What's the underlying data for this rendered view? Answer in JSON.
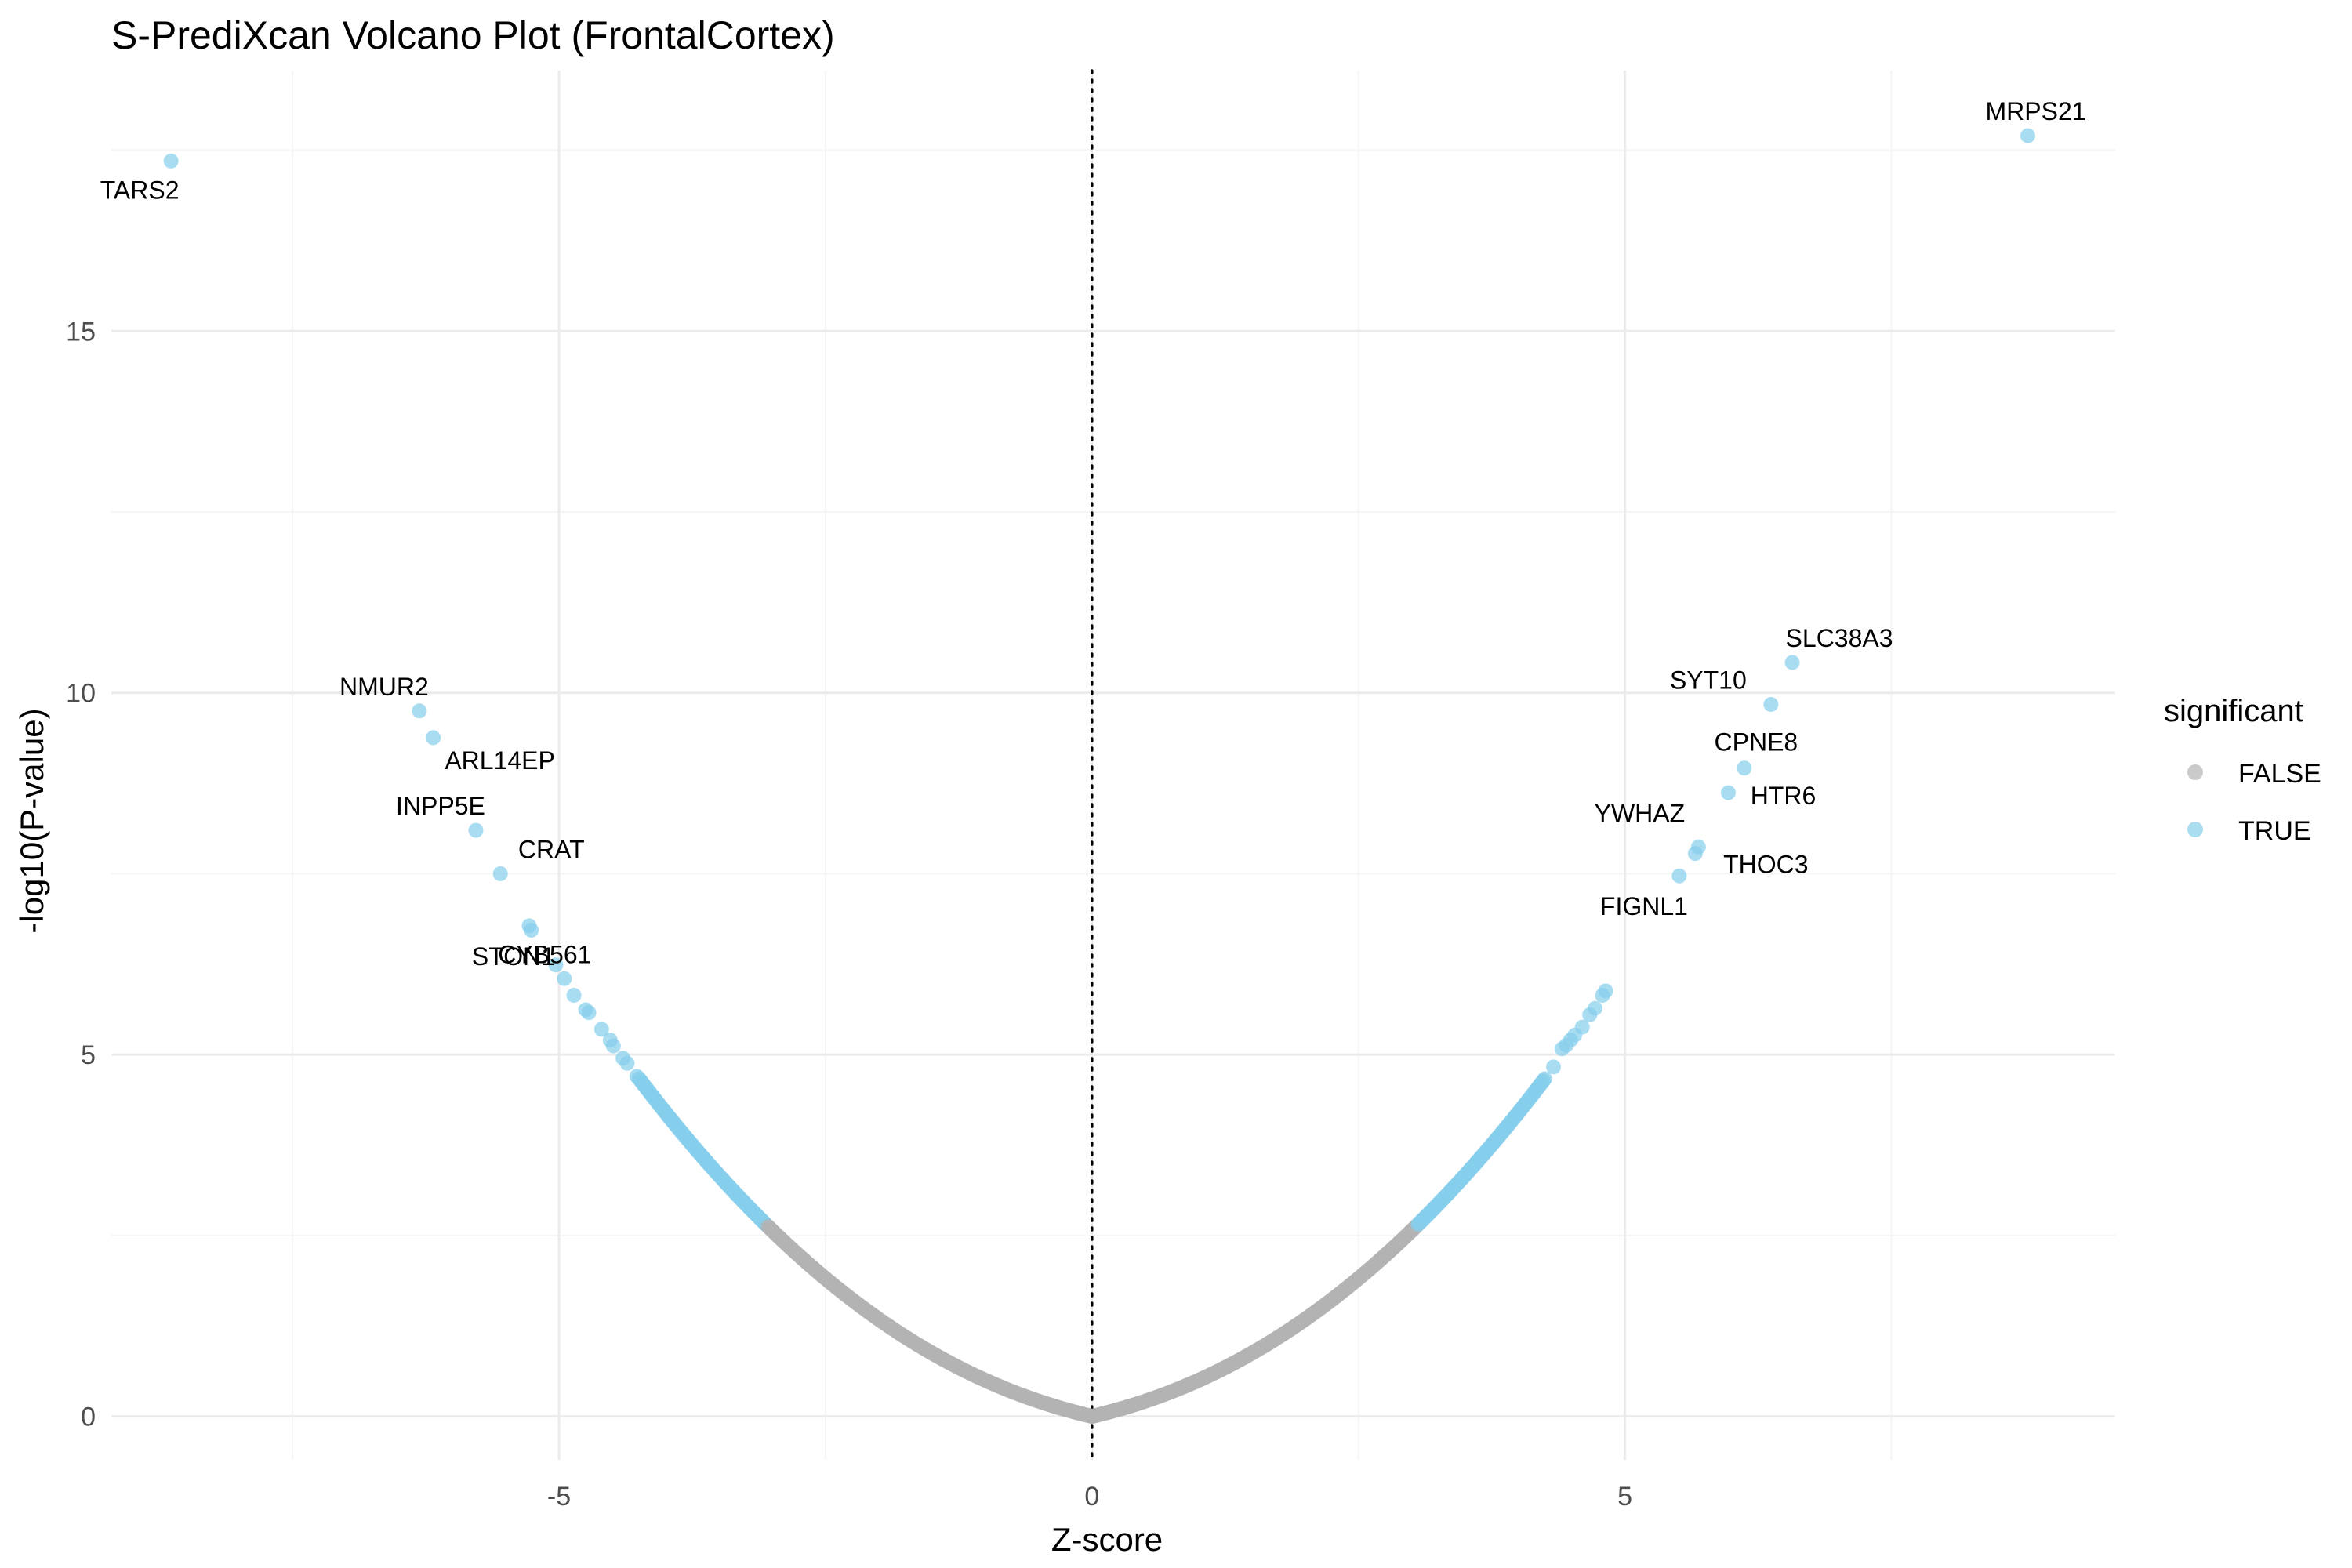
{
  "colors": {
    "FALSE": "#b3b3b3",
    "TRUE": "#87ceeb",
    "grid_major": "#ebebeb",
    "grid_minor": "#f5f5f5",
    "zero_line": "#000000"
  },
  "chart_data": {
    "type": "scatter",
    "title": "S-PrediXcan Volcano Plot (FrontalCortex)",
    "xlabel": "Z-score",
    "ylabel": "-log10(P-value)",
    "xlim": [
      -9.2,
      9.6
    ],
    "ylim": [
      -0.6,
      18.6
    ],
    "x_ticks": [
      -5,
      0,
      5
    ],
    "x_tick_labels": [
      "-5",
      "0",
      "5"
    ],
    "y_ticks": [
      0,
      5,
      10,
      15
    ],
    "y_tick_labels": [
      "0",
      "5",
      "10",
      "15"
    ],
    "grid": true,
    "reference_line": {
      "x": 0,
      "style": "dotted"
    },
    "significance_threshold_abs_z": 3.05,
    "legend": {
      "title": "significant",
      "position": "right",
      "entries": [
        {
          "label": "FALSE",
          "color": "#b3b3b3"
        },
        {
          "label": "TRUE",
          "color": "#87ceeb"
        }
      ]
    },
    "curve_series": {
      "description_note": "",
      "left_z_range": [
        -4.25,
        0
      ],
      "right_z_range": [
        0,
        4.25
      ]
    },
    "highlighted_points": [
      {
        "gene": "TARS2",
        "z": -8.64,
        "neglog10p": 17.35
      },
      {
        "gene": "MRPS21",
        "z": 8.78,
        "neglog10p": 17.7
      },
      {
        "gene": "NMUR2",
        "z": -6.31,
        "neglog10p": 9.75
      },
      {
        "gene": "ARL14EP",
        "z": -6.18,
        "neglog10p": 9.38
      },
      {
        "gene": "INPP5E",
        "z": -5.78,
        "neglog10p": 8.1
      },
      {
        "gene": "CRAT",
        "z": -5.55,
        "neglog10p": 7.5
      },
      {
        "gene": "STON1",
        "z": -5.28,
        "neglog10p": 6.78
      },
      {
        "gene": "CYB561",
        "z": -4.95,
        "neglog10p": 6.05
      },
      {
        "gene": "SLC38A3",
        "z": 6.57,
        "neglog10p": 10.42
      },
      {
        "gene": "SYT10",
        "z": 6.37,
        "neglog10p": 9.84
      },
      {
        "gene": "CPNE8",
        "z": 6.12,
        "neglog10p": 8.96
      },
      {
        "gene": "HTR6",
        "z": 5.97,
        "neglog10p": 8.62
      },
      {
        "gene": "YWHAZ",
        "z": 5.69,
        "neglog10p": 7.87
      },
      {
        "gene": "THOC3",
        "z": 5.66,
        "neglog10p": 7.78
      },
      {
        "gene": "FIGNL1",
        "z": 5.51,
        "neglog10p": 7.47
      }
    ],
    "other_significant_points": [
      {
        "z": -5.26,
        "neglog10p": 6.72
      },
      {
        "z": -5.03,
        "neglog10p": 6.24
      },
      {
        "z": -4.86,
        "neglog10p": 5.82
      },
      {
        "z": -4.75,
        "neglog10p": 5.62
      },
      {
        "z": -4.72,
        "neglog10p": 5.58
      },
      {
        "z": -4.6,
        "neglog10p": 5.35
      },
      {
        "z": -4.52,
        "neglog10p": 5.2
      },
      {
        "z": -4.49,
        "neglog10p": 5.12
      },
      {
        "z": -4.4,
        "neglog10p": 4.95
      },
      {
        "z": -4.36,
        "neglog10p": 4.88
      },
      {
        "z": -4.27,
        "neglog10p": 4.7
      },
      {
        "z": 4.33,
        "neglog10p": 4.83
      },
      {
        "z": 4.41,
        "neglog10p": 5.08
      },
      {
        "z": 4.45,
        "neglog10p": 5.13
      },
      {
        "z": 4.49,
        "neglog10p": 5.2
      },
      {
        "z": 4.53,
        "neglog10p": 5.27
      },
      {
        "z": 4.6,
        "neglog10p": 5.38
      },
      {
        "z": 4.67,
        "neglog10p": 5.55
      },
      {
        "z": 4.72,
        "neglog10p": 5.64
      },
      {
        "z": 4.79,
        "neglog10p": 5.82
      },
      {
        "z": 4.82,
        "neglog10p": 5.88
      }
    ]
  }
}
